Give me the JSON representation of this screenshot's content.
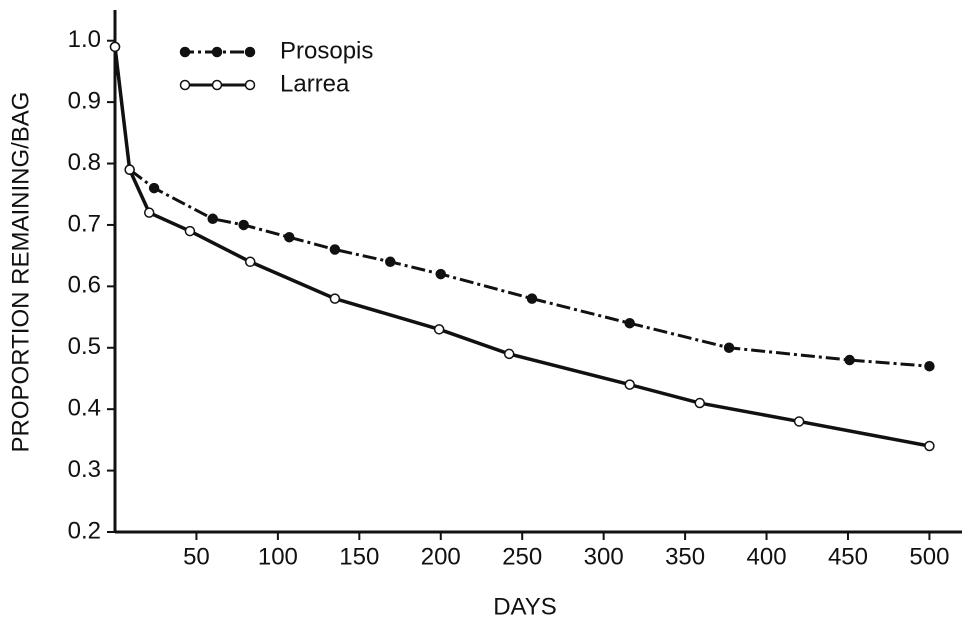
{
  "chart_data": {
    "type": "line",
    "xlabel": "DAYS",
    "ylabel": "PROPORTION REMAINING/BAG",
    "xlim": [
      0,
      520
    ],
    "ylim": [
      0.2,
      1.05
    ],
    "xticks": [
      50,
      100,
      150,
      200,
      250,
      300,
      350,
      400,
      450,
      500
    ],
    "yticks": [
      0.2,
      0.3,
      0.4,
      0.5,
      0.6,
      0.7,
      0.8,
      0.9,
      {
        "value": 1,
        "label": "1.0"
      }
    ],
    "legend": "top-left",
    "series": [
      {
        "name": "Prosopis",
        "color": "#111111",
        "dashed": true,
        "filled_markers": true,
        "x": [
          0,
          9,
          24,
          60,
          79,
          107,
          135,
          169,
          200,
          256,
          316,
          377,
          451,
          500
        ],
        "values": [
          0.99,
          0.79,
          0.76,
          0.71,
          0.7,
          0.68,
          0.66,
          0.64,
          0.62,
          0.58,
          0.54,
          0.5,
          0.48,
          0.47
        ]
      },
      {
        "name": "Larrea",
        "color": "#111111",
        "dashed": false,
        "filled_markers": false,
        "x": [
          0,
          9,
          21,
          46,
          83,
          135,
          199,
          242,
          316,
          359,
          420,
          500
        ],
        "values": [
          0.99,
          0.79,
          0.72,
          0.69,
          0.64,
          0.58,
          0.53,
          0.49,
          0.44,
          0.41,
          0.38,
          0.34
        ]
      }
    ]
  }
}
